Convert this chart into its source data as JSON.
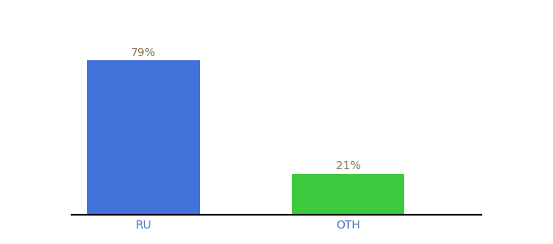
{
  "categories": [
    "RU",
    "OTH"
  ],
  "values": [
    79,
    21
  ],
  "bar_colors": [
    "#4472db",
    "#3dc93d"
  ],
  "label_colors": [
    "#8b7355",
    "#8b7355"
  ],
  "value_labels": [
    "79%",
    "21%"
  ],
  "background_color": "#ffffff",
  "ylim": [
    0,
    100
  ],
  "tick_color": "#4472c4",
  "axis_line_color": "#000000",
  "label_fontsize": 10,
  "value_fontsize": 10,
  "bar_width": 0.55,
  "x_positions": [
    0,
    1
  ],
  "xlim": [
    -0.35,
    1.65
  ]
}
